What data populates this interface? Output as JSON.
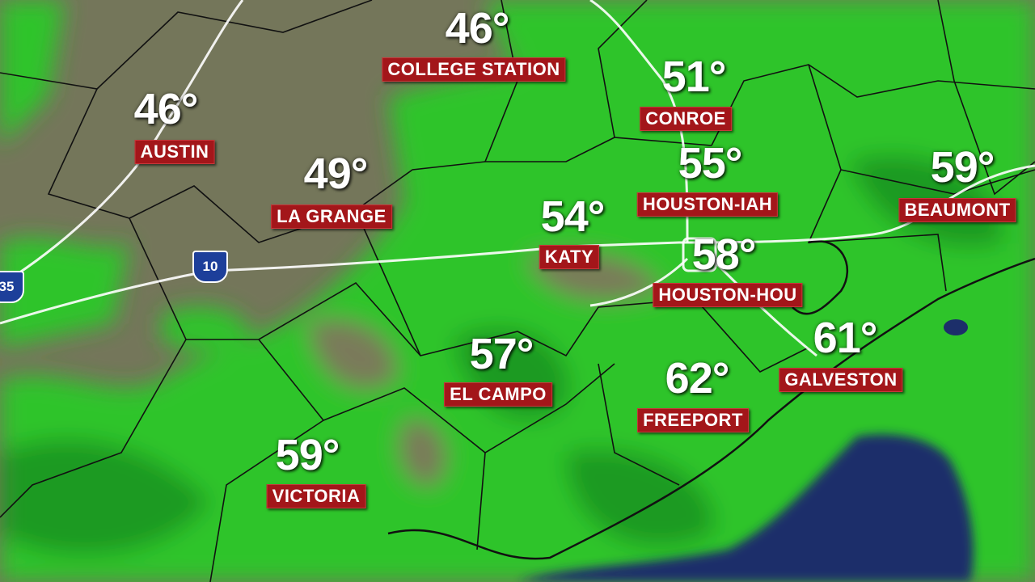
{
  "map": {
    "colors": {
      "rain_light": "#2fc42c",
      "rain_dark": "#1f9a22",
      "land": "#7a7a5a",
      "water": "#1c2f6a",
      "label_bg": "#a3161a"
    },
    "interstates": [
      {
        "number": "10"
      },
      {
        "number": "35"
      }
    ],
    "cities": [
      {
        "name": "COLLEGE STATION",
        "temp": "46°"
      },
      {
        "name": "AUSTIN",
        "temp": "46°"
      },
      {
        "name": "CONROE",
        "temp": "51°"
      },
      {
        "name": "LA GRANGE",
        "temp": "49°"
      },
      {
        "name": "HOUSTON-IAH",
        "temp": "55°"
      },
      {
        "name": "BEAUMONT",
        "temp": "59°"
      },
      {
        "name": "KATY",
        "temp": "54°"
      },
      {
        "name": "HOUSTON-HOU",
        "temp": "58°"
      },
      {
        "name": "GALVESTON",
        "temp": "61°"
      },
      {
        "name": "EL CAMPO",
        "temp": "57°"
      },
      {
        "name": "FREEPORT",
        "temp": "62°"
      },
      {
        "name": "VICTORIA",
        "temp": "59°"
      }
    ]
  }
}
